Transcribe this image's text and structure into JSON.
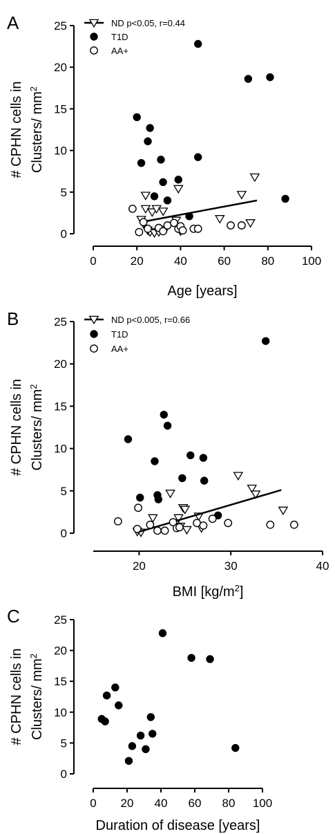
{
  "chart_data": [
    {
      "panel": "A",
      "type": "scatter",
      "xlabel": "Age [years]",
      "ylabel_line1": "# CPHN cells in",
      "ylabel_line2": "Clusters/ mm",
      "ylabel_sup": "2",
      "xlim": [
        0,
        100
      ],
      "ylim": [
        0,
        25
      ],
      "xticks": [
        0,
        20,
        40,
        60,
        80,
        100
      ],
      "yticks": [
        0,
        5,
        10,
        15,
        20,
        25
      ],
      "legend_position": "top-left",
      "series": [
        {
          "name": "ND p<0.05, r=0.44",
          "marker": "open-triangle-down",
          "regression": {
            "x": [
              22,
              75
            ],
            "y": [
              1.4,
              4.0
            ]
          },
          "points": [
            [
              22,
              1.7
            ],
            [
              23,
              1.2
            ],
            [
              24,
              4.6
            ],
            [
              24,
              3.0
            ],
            [
              25,
              0.4
            ],
            [
              26,
              0.2
            ],
            [
              27,
              2.6
            ],
            [
              28,
              0.1
            ],
            [
              29,
              3.0
            ],
            [
              30,
              0.2
            ],
            [
              32,
              2.7
            ],
            [
              33,
              0.5
            ],
            [
              38,
              1.6
            ],
            [
              39,
              5.4
            ],
            [
              40,
              0.3
            ],
            [
              58,
              1.8
            ],
            [
              68,
              4.7
            ],
            [
              72,
              1.3
            ],
            [
              74,
              6.8
            ]
          ]
        },
        {
          "name": "T1D",
          "marker": "filled-circle",
          "points": [
            [
              20,
              14.0
            ],
            [
              22,
              8.5
            ],
            [
              25,
              11.1
            ],
            [
              26,
              12.7
            ],
            [
              28,
              4.5
            ],
            [
              31,
              8.9
            ],
            [
              32,
              6.2
            ],
            [
              34,
              4.0
            ],
            [
              39,
              6.5
            ],
            [
              44,
              2.1
            ],
            [
              48,
              22.8
            ],
            [
              48,
              9.2
            ],
            [
              71,
              18.6
            ],
            [
              81,
              18.8
            ],
            [
              88,
              4.2
            ]
          ]
        },
        {
          "name": "AA+",
          "marker": "open-circle",
          "points": [
            [
              18,
              3.0
            ],
            [
              21,
              0.2
            ],
            [
              23,
              1.4
            ],
            [
              25,
              0.6
            ],
            [
              30,
              0.7
            ],
            [
              32,
              0.3
            ],
            [
              34,
              1.0
            ],
            [
              37,
              1.3
            ],
            [
              39,
              0.6
            ],
            [
              40,
              0.9
            ],
            [
              41,
              0.4
            ],
            [
              46,
              0.6
            ],
            [
              48,
              0.6
            ],
            [
              63,
              1.0
            ],
            [
              68,
              1.0
            ]
          ]
        }
      ]
    },
    {
      "panel": "B",
      "type": "scatter",
      "xlabel": "BMI [kg/m",
      "xlabel_sup": "2",
      "xlabel_end": "]",
      "ylabel_line1": "# CPHN cells in",
      "ylabel_line2": "Clusters/ mm",
      "ylabel_sup": "2",
      "xlim": [
        15,
        40
      ],
      "ylim": [
        0,
        25
      ],
      "xticks": [
        20,
        30,
        40
      ],
      "yticks": [
        0,
        5,
        10,
        15,
        20,
        25
      ],
      "legend_position": "top-left",
      "series": [
        {
          "name": "ND p<0.005, r=0.66",
          "marker": "open-triangle-down",
          "regression": {
            "x": [
              19.8,
              35.5
            ],
            "y": [
              0.1,
              5.1
            ]
          },
          "points": [
            [
              19.8,
              0.2
            ],
            [
              20.2,
              0.1
            ],
            [
              21.5,
              1.8
            ],
            [
              23.4,
              4.7
            ],
            [
              24.0,
              1.2
            ],
            [
              24.3,
              1.8
            ],
            [
              24.5,
              0.8
            ],
            [
              24.8,
              3.0
            ],
            [
              25.0,
              2.8
            ],
            [
              25.2,
              0.4
            ],
            [
              26.5,
              2.0
            ],
            [
              26.8,
              0.6
            ],
            [
              30.8,
              6.8
            ],
            [
              32.3,
              5.3
            ],
            [
              32.7,
              4.6
            ],
            [
              35.7,
              2.7
            ]
          ]
        },
        {
          "name": "T1D",
          "marker": "filled-circle",
          "points": [
            [
              18.8,
              11.1
            ],
            [
              20.1,
              4.2
            ],
            [
              21.7,
              8.5
            ],
            [
              22.0,
              4.5
            ],
            [
              22.1,
              4.0
            ],
            [
              22.7,
              14.0
            ],
            [
              23.1,
              12.7
            ],
            [
              24.7,
              6.5
            ],
            [
              25.6,
              9.2
            ],
            [
              27.0,
              8.9
            ],
            [
              27.1,
              6.2
            ],
            [
              28.6,
              2.1
            ],
            [
              33.8,
              22.7
            ]
          ]
        },
        {
          "name": "AA+",
          "marker": "open-circle",
          "points": [
            [
              17.7,
              1.4
            ],
            [
              19.8,
              0.5
            ],
            [
              19.9,
              3.0
            ],
            [
              21.2,
              1.0
            ],
            [
              22.0,
              0.3
            ],
            [
              22.8,
              0.3
            ],
            [
              23.7,
              1.3
            ],
            [
              24.1,
              0.6
            ],
            [
              24.4,
              0.7
            ],
            [
              26.3,
              1.2
            ],
            [
              27.0,
              0.9
            ],
            [
              28.0,
              1.7
            ],
            [
              29.7,
              1.2
            ],
            [
              34.3,
              1.0
            ],
            [
              36.9,
              1.0
            ]
          ]
        }
      ]
    },
    {
      "panel": "C",
      "type": "scatter",
      "xlabel": "Duration of disease [years]",
      "ylabel_line1": "# CPHN cells in",
      "ylabel_line2": "Clusters/ mm",
      "ylabel_sup": "2",
      "xlim": [
        0,
        100
      ],
      "ylim": [
        0,
        25
      ],
      "xticks": [
        0,
        20,
        40,
        60,
        80,
        100
      ],
      "yticks": [
        0,
        5,
        10,
        15,
        20,
        25
      ],
      "series": [
        {
          "marker": "filled-circle",
          "points": [
            [
              5,
              8.9
            ],
            [
              7,
              8.5
            ],
            [
              8,
              12.7
            ],
            [
              13,
              14.0
            ],
            [
              15,
              11.1
            ],
            [
              21,
              2.1
            ],
            [
              23,
              4.5
            ],
            [
              28,
              6.2
            ],
            [
              31,
              4.0
            ],
            [
              34,
              9.2
            ],
            [
              35,
              6.5
            ],
            [
              41,
              22.8
            ],
            [
              58,
              18.8
            ],
            [
              69,
              18.6
            ],
            [
              84,
              4.2
            ]
          ]
        }
      ]
    }
  ]
}
